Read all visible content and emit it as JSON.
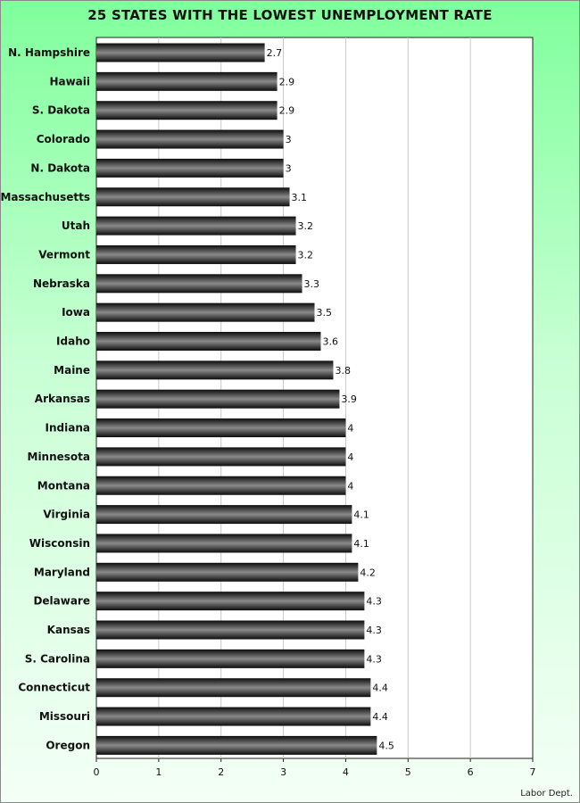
{
  "chart_data": {
    "type": "bar",
    "orientation": "horizontal",
    "title": "25 STATES WITH THE LOWEST UNEMPLOYMENT RATE",
    "categories": [
      "N. Hampshire",
      "Hawaii",
      "S. Dakota",
      "Colorado",
      "N. Dakota",
      "Massachusetts",
      "Utah",
      "Vermont",
      "Nebraska",
      "Iowa",
      "Idaho",
      "Maine",
      "Arkansas",
      "Indiana",
      "Minnesota",
      "Montana",
      "Virginia",
      "Wisconsin",
      "Maryland",
      "Delaware",
      "Kansas",
      "S. Carolina",
      "Connecticut",
      "Missouri",
      "Oregon"
    ],
    "values": [
      2.7,
      2.9,
      2.9,
      3,
      3,
      3.1,
      3.2,
      3.2,
      3.3,
      3.5,
      3.6,
      3.8,
      3.9,
      4,
      4,
      4,
      4.1,
      4.1,
      4.2,
      4.3,
      4.3,
      4.3,
      4.4,
      4.4,
      4.5
    ],
    "xlim": [
      0,
      7
    ],
    "xticks": [
      0,
      1,
      2,
      3,
      4,
      5,
      6,
      7
    ],
    "grid": true,
    "bar_color": "#1a1a1a",
    "background_gradient": [
      "#80ff9c",
      "#f4fff6"
    ],
    "source": "Labor Dept."
  }
}
